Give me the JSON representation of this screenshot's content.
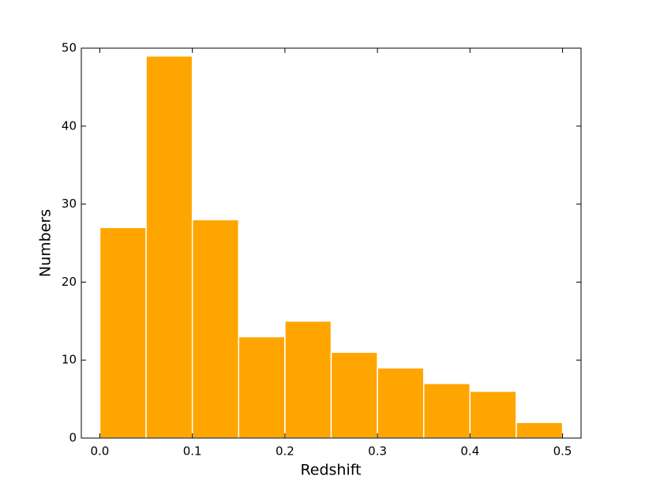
{
  "chart_data": {
    "type": "histogram",
    "xlabel": "Redshift",
    "ylabel": "Numbers",
    "bins": [
      0.0,
      0.05,
      0.1,
      0.15,
      0.2,
      0.25,
      0.3,
      0.35,
      0.4,
      0.45,
      0.5
    ],
    "counts": [
      27,
      49,
      28,
      13,
      15,
      11,
      9,
      7,
      6,
      2
    ],
    "color": "#ffa500",
    "edgecolor": "#ffffff",
    "xlim": [
      -0.02,
      0.52
    ],
    "ylim": [
      0,
      50
    ],
    "xticks": [
      {
        "value": 0,
        "label": "0.0"
      },
      0.1,
      0.2,
      0.3,
      0.4,
      0.5
    ],
    "yticks": [
      0,
      10,
      20,
      30,
      40,
      50
    ]
  }
}
